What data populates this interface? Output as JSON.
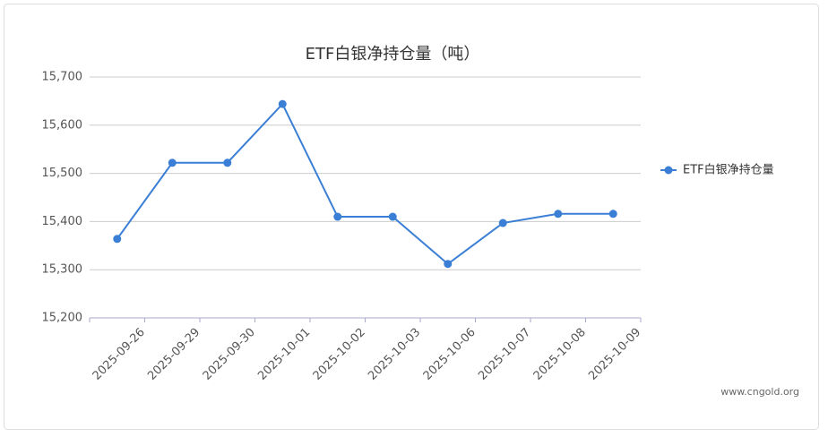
{
  "chart_data": {
    "type": "line",
    "title": "ETF白银净持仓量（吨）",
    "categories": [
      "2025-09-26",
      "2025-09-29",
      "2025-09-30",
      "2025-10-01",
      "2025-10-02",
      "2025-10-03",
      "2025-10-06",
      "2025-10-07",
      "2025-10-08",
      "2025-10-09"
    ],
    "series": [
      {
        "name": "ETF白银净持仓量",
        "color": "#3a7fd5",
        "values": [
          15364,
          15522,
          15522,
          15644,
          15410,
          15410,
          15312,
          15397,
          15416,
          15416
        ]
      }
    ],
    "ylim": [
      15200,
      15700
    ],
    "yticks": [
      {
        "value": 15200,
        "label": "15,200"
      },
      {
        "value": 15300,
        "label": "15,300"
      },
      {
        "value": 15400,
        "label": "15,400"
      },
      {
        "value": 15500,
        "label": "15,500"
      },
      {
        "value": 15600,
        "label": "15,600"
      },
      {
        "value": 15700,
        "label": "15,700"
      }
    ],
    "grid": true,
    "legend": "right",
    "source": "www.cngold.org"
  }
}
